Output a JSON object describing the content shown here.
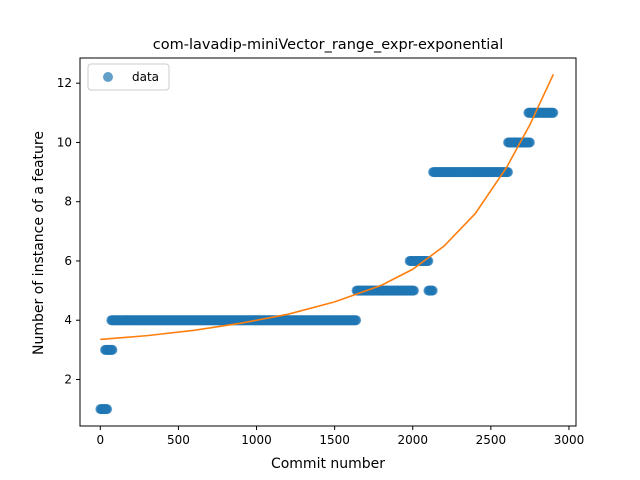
{
  "chart_data": {
    "type": "scatter",
    "title": "com-lavadip-miniVector_range_expr-exponential",
    "xlabel": "Commit number",
    "ylabel": "Number of instance of a feature",
    "xlim": [
      -130,
      3045
    ],
    "ylim": [
      0.43,
      12.85
    ],
    "xticks": [
      0,
      500,
      1000,
      1500,
      2000,
      2500,
      3000
    ],
    "yticks": [
      2,
      4,
      6,
      8,
      10,
      12
    ],
    "grid": false,
    "legend": {
      "placement": "top-left",
      "entries": [
        "data"
      ]
    },
    "colors": {
      "data": "#1f77b4",
      "fit": "#ff7f0e"
    },
    "series": [
      {
        "name": "data",
        "kind": "scatter",
        "segments": [
          {
            "x_start": 0,
            "x_end": 45,
            "y": 1
          },
          {
            "x_start": 30,
            "x_end": 80,
            "y": 3
          },
          {
            "x_start": 70,
            "x_end": 1640,
            "y": 4
          },
          {
            "x_start": 1640,
            "x_end": 2010,
            "y": 5
          },
          {
            "x_start": 1980,
            "x_end": 2100,
            "y": 6
          },
          {
            "x_start": 2100,
            "x_end": 2130,
            "y": 5
          },
          {
            "x_start": 2130,
            "x_end": 2610,
            "y": 9
          },
          {
            "x_start": 2610,
            "x_end": 2750,
            "y": 10
          },
          {
            "x_start": 2740,
            "x_end": 2900,
            "y": 11
          }
        ]
      },
      {
        "name": "",
        "kind": "line",
        "x": [
          0,
          300,
          600,
          900,
          1200,
          1500,
          1800,
          2000,
          2200,
          2400,
          2600,
          2750,
          2900
        ],
        "y": [
          3.35,
          3.48,
          3.66,
          3.9,
          4.2,
          4.62,
          5.18,
          5.72,
          6.5,
          7.6,
          9.15,
          10.6,
          12.3
        ]
      }
    ]
  }
}
